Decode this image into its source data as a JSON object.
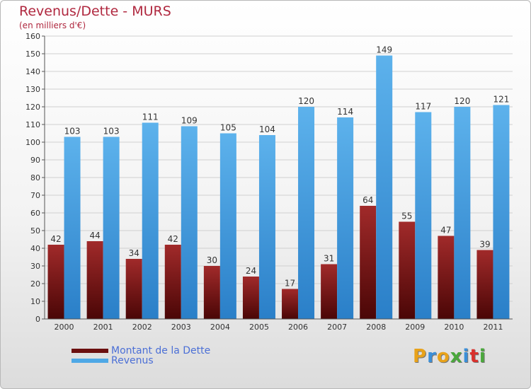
{
  "title": "Revenus/Dette - MURS",
  "subtitle": "(en milliers d'€)",
  "colors": {
    "dette": "#8b1a1a",
    "revenus": "#4ea8e6",
    "title": "#b0283f",
    "legend_text": "#4b6fd6",
    "grid": "#d0d0d0"
  },
  "legend": [
    {
      "label": "Montant de la Dette",
      "color": "#6b0f0f"
    },
    {
      "label": "Revenus",
      "color": "#4ea8e6"
    }
  ],
  "logo": {
    "letters": [
      "P",
      "r",
      "o",
      "x",
      "i",
      "t",
      "i"
    ],
    "colors": [
      "#e8a21a",
      "#3b8fd8",
      "#e8a21a",
      "#4aa83c",
      "#3b8fd8",
      "#d9302c",
      "#4aa83c"
    ]
  },
  "chart_data": {
    "type": "bar",
    "categories": [
      "2000",
      "2001",
      "2002",
      "2003",
      "2004",
      "2005",
      "2006",
      "2007",
      "2008",
      "2009",
      "2010",
      "2011"
    ],
    "series": [
      {
        "name": "Montant de la Dette",
        "values": [
          42,
          44,
          34,
          42,
          30,
          24,
          17,
          31,
          64,
          55,
          47,
          39
        ]
      },
      {
        "name": "Revenus",
        "values": [
          103,
          103,
          111,
          109,
          105,
          104,
          120,
          114,
          149,
          117,
          120,
          121
        ]
      }
    ],
    "ylim": [
      0,
      160
    ],
    "yticks": [
      0,
      10,
      20,
      30,
      40,
      50,
      60,
      70,
      80,
      90,
      100,
      110,
      120,
      130,
      140,
      150,
      160
    ],
    "grid": true,
    "legend_position": "bottom-left"
  }
}
